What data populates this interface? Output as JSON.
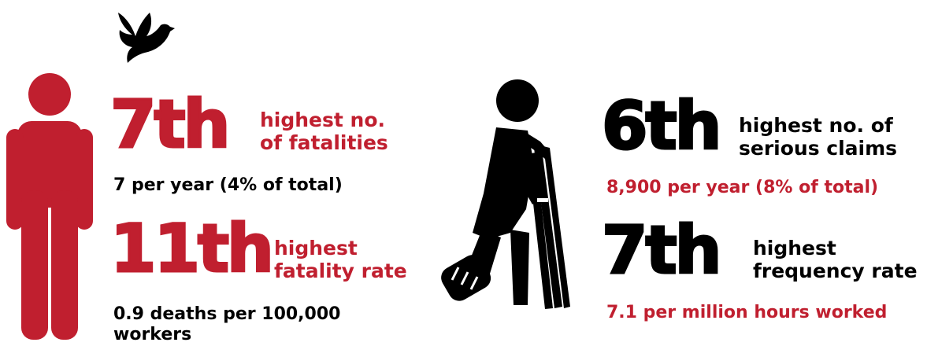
{
  "colors": {
    "accent": "#c01f2f",
    "dark": "#000000",
    "background": "#ffffff"
  },
  "icons": [
    "dove-icon",
    "person-icon",
    "injured-worker-icon"
  ],
  "left": {
    "stat1": {
      "rank": "7th",
      "label_line1": "highest no.",
      "label_line2": "of fatalities",
      "detail": "7 per year (4% of total)"
    },
    "stat2": {
      "rank": "11th",
      "label_line1": "highest",
      "label_line2": "fatality rate",
      "detail_line1": "0.9 deaths per 100,000",
      "detail_line2": "workers"
    }
  },
  "right": {
    "stat1": {
      "rank": "6th",
      "label_line1": "highest no. of",
      "label_line2": "serious claims",
      "detail": "8,900 per year (8% of total)"
    },
    "stat2": {
      "rank": "7th",
      "label_line1": "highest",
      "label_line2": "frequency rate",
      "detail": "7.1 per million hours worked"
    }
  }
}
